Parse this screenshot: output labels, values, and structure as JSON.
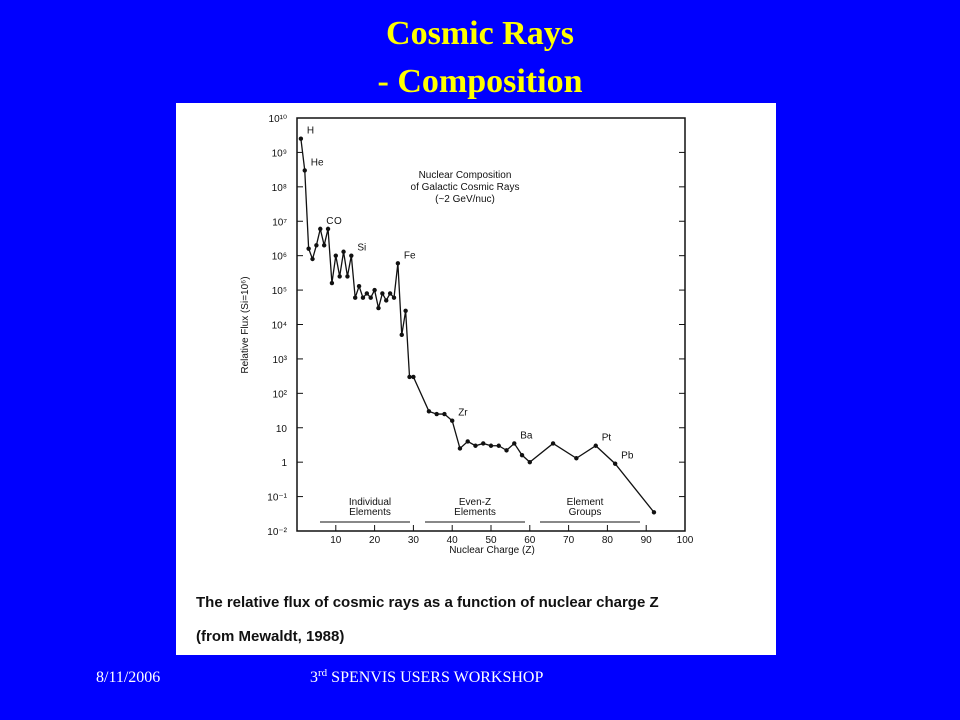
{
  "slide": {
    "title_lines": [
      "Cosmic Rays",
      "- Composition"
    ],
    "footer_date": "8/11/2006",
    "footer_event": [
      "3",
      "rd",
      " SPENVIS USERS WORKSHOP"
    ],
    "caption_lines": [
      "The relative flux of cosmic rays as a function of nuclear charge Z",
      "(from Mewaldt, 1988)"
    ]
  },
  "chart_data": {
    "type": "line",
    "title_lines": [
      "Nuclear Composition",
      "of Galactic Cosmic Rays",
      "(~2 GeV/nuc)"
    ],
    "x_label": "Nuclear Charge (Z)",
    "y_label": "Relative Flux (Si=10⁶)",
    "log_y": true,
    "color": "#111111",
    "x": [
      1,
      2,
      3,
      4,
      5,
      6,
      7,
      8,
      9,
      10,
      11,
      12,
      13,
      14,
      15,
      16,
      17,
      18,
      19,
      20,
      21,
      22,
      23,
      24,
      25,
      26,
      27,
      28,
      29,
      30,
      34,
      36,
      38,
      40,
      42,
      44,
      46,
      48,
      50,
      52,
      54,
      56,
      58,
      60,
      66,
      72,
      77,
      82,
      92
    ],
    "values": [
      2500000000,
      300000000,
      1600000,
      800000,
      2000000,
      6000000,
      2000000,
      6000000,
      160000,
      1000000,
      250000,
      1300000,
      250000,
      1000000,
      60000,
      130000,
      60000,
      80000,
      60000,
      100000,
      30000,
      80000,
      50000,
      80000,
      60000,
      600000,
      5000,
      25000,
      300,
      300,
      30,
      25,
      25,
      16,
      2.5,
      4,
      3,
      3.5,
      3,
      3,
      2.2,
      3.5,
      1.6,
      1,
      3.5,
      1.3,
      3,
      0.9,
      0.035
    ],
    "xlim": [
      0,
      100
    ],
    "xticks": [
      10,
      20,
      30,
      40,
      50,
      60,
      70,
      80,
      90,
      100
    ],
    "ylim": [
      0.01,
      10000000000
    ],
    "yticks": [
      {
        "value": 0.01,
        "label": "10⁻²"
      },
      {
        "value": 0.1,
        "label": "10⁻¹"
      },
      1,
      10,
      {
        "value": 100,
        "label": "10²"
      },
      {
        "value": 1000,
        "label": "10³"
      },
      {
        "value": 10000,
        "label": "10⁴"
      },
      {
        "value": 100000,
        "label": "10⁵"
      },
      {
        "value": 1000000,
        "label": "10⁶"
      },
      {
        "value": 10000000,
        "label": "10⁷"
      },
      {
        "value": 100000000,
        "label": "10⁸"
      },
      {
        "value": 1000000000,
        "label": "10⁹"
      },
      {
        "value": 10000000000,
        "label": "10¹⁰"
      }
    ],
    "annotations": [
      {
        "text": "H",
        "x": 1
      },
      {
        "text": "He",
        "x": 2
      },
      {
        "text": "C",
        "x": 6
      },
      {
        "text": "O",
        "x": 8
      },
      {
        "text": "Si",
        "x": 14
      },
      {
        "text": "Fe",
        "x": 26
      },
      {
        "text": "Zr",
        "x": 40
      },
      {
        "text": "Ba",
        "x": 56
      },
      {
        "text": "Pt",
        "x": 77
      },
      {
        "text": "Pb",
        "x": 82
      }
    ],
    "regions": [
      [
        "Individual",
        "Elements"
      ],
      [
        "Even-Z",
        "Elements"
      ],
      [
        "Element",
        "Groups"
      ]
    ]
  }
}
